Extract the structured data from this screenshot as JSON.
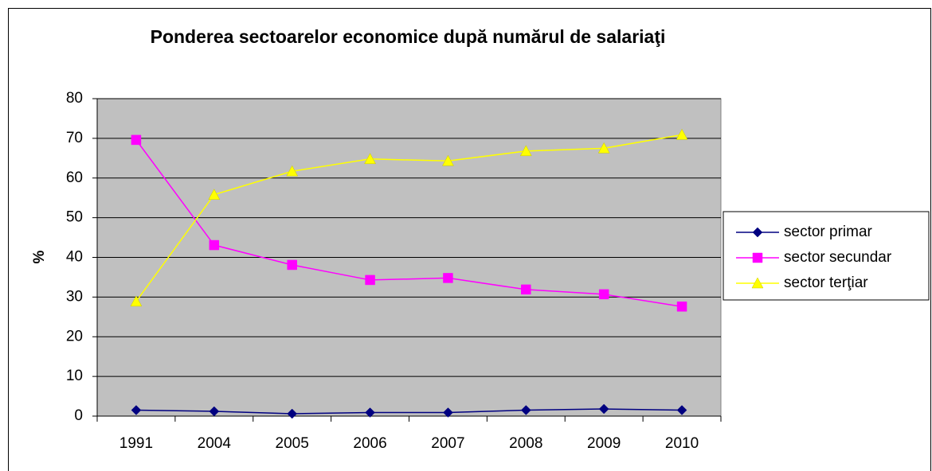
{
  "chart_data": {
    "type": "line",
    "title": "Ponderea sectoarelor economice după numărul de salariaţi",
    "y_label": "%",
    "categories": [
      "1991",
      "2004",
      "2005",
      "2006",
      "2007",
      "2008",
      "2009",
      "2010"
    ],
    "series": [
      {
        "name": "sector primar",
        "color": "#000080",
        "marker": "diamond",
        "values": [
          1.5,
          1.2,
          0.6,
          0.9,
          0.9,
          1.5,
          1.8,
          1.5
        ]
      },
      {
        "name": "sector secundar",
        "color": "#ff00ff",
        "marker": "square",
        "values": [
          69.6,
          43.1,
          38.1,
          34.3,
          34.8,
          31.9,
          30.7,
          27.6
        ]
      },
      {
        "name": "sector terţiar",
        "color": "#ffff00",
        "marker": "triangle",
        "values": [
          28.9,
          55.8,
          61.7,
          64.8,
          64.3,
          66.8,
          67.5,
          70.9
        ]
      }
    ],
    "ylim": [
      0,
      80
    ],
    "yticks": [
      0,
      10,
      20,
      30,
      40,
      50,
      60,
      70,
      80
    ],
    "grid": true,
    "legend": "right",
    "plot_background": "#c0c0c0"
  }
}
